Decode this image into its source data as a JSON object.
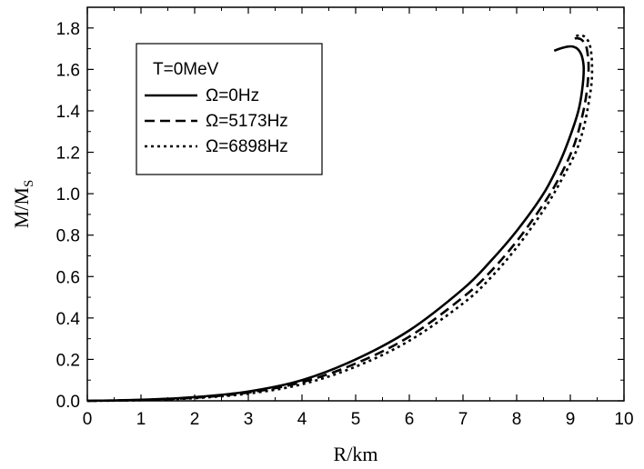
{
  "chart_data": {
    "type": "line",
    "xlabel": "R/km",
    "ylabel": "M/M",
    "ylabel_subscript": "S",
    "xlim": [
      0,
      10
    ],
    "ylim": [
      0,
      1.9
    ],
    "xticks": [
      "0",
      "1",
      "2",
      "3",
      "4",
      "5",
      "6",
      "7",
      "8",
      "9",
      "10"
    ],
    "yticks": [
      "0.0",
      "0.2",
      "0.4",
      "0.6",
      "0.8",
      "1.0",
      "1.2",
      "1.4",
      "1.6",
      "1.8"
    ],
    "grid": false,
    "legend_position": "top-left",
    "legend_title": "T=0MeV",
    "series": [
      {
        "name": "Ω=0Hz",
        "line_style": "solid",
        "color": "#000000",
        "points": [
          [
            0,
            0
          ],
          [
            1,
            0.005
          ],
          [
            2,
            0.018
          ],
          [
            3,
            0.045
          ],
          [
            4,
            0.1
          ],
          [
            5,
            0.2
          ],
          [
            6,
            0.34
          ],
          [
            7,
            0.54
          ],
          [
            7.5,
            0.67
          ],
          [
            8,
            0.82
          ],
          [
            8.5,
            1.0
          ],
          [
            8.8,
            1.15
          ],
          [
            9.0,
            1.28
          ],
          [
            9.15,
            1.4
          ],
          [
            9.22,
            1.5
          ],
          [
            9.25,
            1.6
          ],
          [
            9.22,
            1.66
          ],
          [
            9.15,
            1.695
          ],
          [
            9.05,
            1.71
          ],
          [
            8.95,
            1.71
          ],
          [
            8.8,
            1.7
          ],
          [
            8.7,
            1.69
          ]
        ]
      },
      {
        "name": "Ω=5173Hz",
        "line_style": "dashed",
        "color": "#000000",
        "points": [
          [
            0,
            0
          ],
          [
            1,
            0.004
          ],
          [
            2,
            0.015
          ],
          [
            3,
            0.04
          ],
          [
            4,
            0.09
          ],
          [
            5,
            0.18
          ],
          [
            6,
            0.31
          ],
          [
            7,
            0.5
          ],
          [
            7.5,
            0.62
          ],
          [
            8,
            0.77
          ],
          [
            8.5,
            0.95
          ],
          [
            8.8,
            1.08
          ],
          [
            9.05,
            1.22
          ],
          [
            9.2,
            1.35
          ],
          [
            9.3,
            1.48
          ],
          [
            9.34,
            1.6
          ],
          [
            9.32,
            1.68
          ],
          [
            9.28,
            1.72
          ],
          [
            9.2,
            1.745
          ],
          [
            9.1,
            1.75
          ],
          [
            9.0,
            1.74
          ]
        ]
      },
      {
        "name": "Ω=6898Hz",
        "line_style": "dotted",
        "color": "#000000",
        "points": [
          [
            0,
            0
          ],
          [
            1,
            0.003
          ],
          [
            2,
            0.013
          ],
          [
            3,
            0.035
          ],
          [
            4,
            0.08
          ],
          [
            5,
            0.165
          ],
          [
            6,
            0.29
          ],
          [
            7,
            0.47
          ],
          [
            7.5,
            0.59
          ],
          [
            8,
            0.74
          ],
          [
            8.5,
            0.92
          ],
          [
            8.8,
            1.05
          ],
          [
            9.1,
            1.2
          ],
          [
            9.25,
            1.32
          ],
          [
            9.35,
            1.45
          ],
          [
            9.4,
            1.55
          ],
          [
            9.4,
            1.65
          ],
          [
            9.36,
            1.72
          ],
          [
            9.28,
            1.755
          ],
          [
            9.18,
            1.765
          ],
          [
            9.05,
            1.755
          ]
        ]
      }
    ]
  }
}
